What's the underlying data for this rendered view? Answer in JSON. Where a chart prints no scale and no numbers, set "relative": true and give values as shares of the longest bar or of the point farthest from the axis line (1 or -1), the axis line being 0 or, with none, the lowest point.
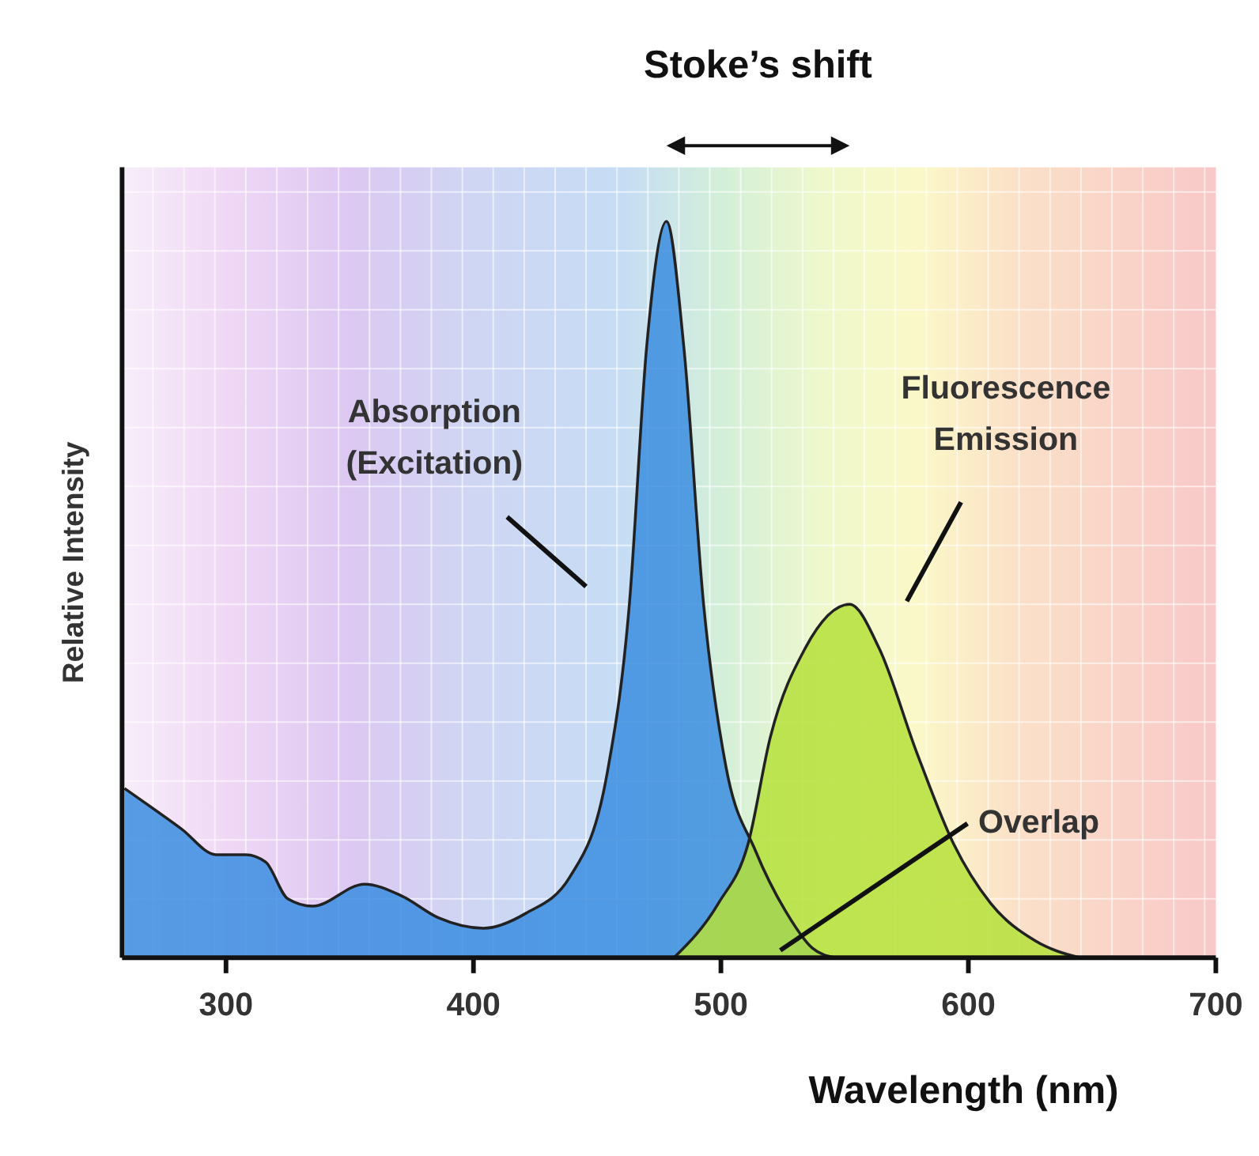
{
  "chart_data": {
    "type": "area",
    "relative": true,
    "xlabel": "Wavelength (nm)",
    "ylabel": "Relative Intensity",
    "xlim": [
      258,
      700
    ],
    "xticks": [
      300,
      400,
      500,
      600,
      700
    ],
    "grid": true,
    "series": [
      {
        "color": "#3b8de0",
        "x": [
          259,
          282,
          296,
          308,
          316,
          325,
          335,
          356,
          371,
          386,
          404,
          421,
          439,
          454,
          463,
          470,
          478,
          485,
          493,
          502,
          514,
          526,
          537,
          546
        ],
        "values": [
          0.23,
          0.175,
          0.14,
          0.14,
          0.13,
          0.08,
          0.07,
          0.1,
          0.084,
          0.054,
          0.04,
          0.06,
          0.11,
          0.25,
          0.48,
          0.83,
          1.0,
          0.83,
          0.48,
          0.26,
          0.145,
          0.064,
          0.013,
          0
        ]
      },
      {
        "color": "#b5e03a",
        "x": [
          481,
          499,
          511,
          520,
          534,
          552,
          564,
          579,
          594,
          609,
          627,
          645
        ],
        "values": [
          0,
          0.074,
          0.155,
          0.3,
          0.42,
          0.48,
          0.42,
          0.28,
          0.155,
          0.074,
          0.023,
          0
        ]
      }
    ],
    "annotations": [
      "Stoke’s shift",
      "Absorption (Excitation)",
      "Fluorescence Emission",
      {
        "text": "Overlap",
        "x": 524,
        "y": 0.01
      }
    ]
  }
}
